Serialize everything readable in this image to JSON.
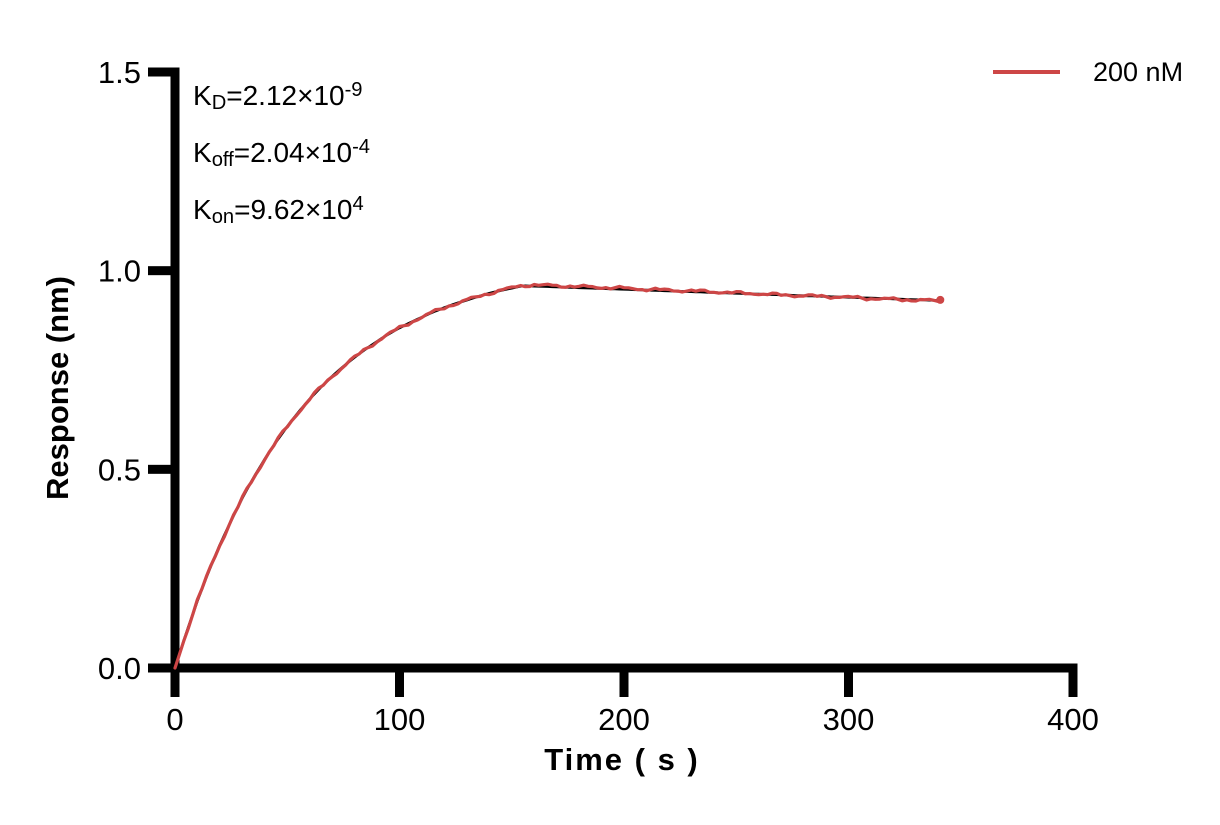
{
  "page": {
    "background_color": "#ffffff",
    "axis_color": "#000000"
  },
  "chart_data": {
    "type": "line",
    "title": "",
    "xlabel": "Time ( s )",
    "ylabel": "Response (nm)",
    "xlim": [
      0,
      400
    ],
    "ylim": [
      0,
      1.5
    ],
    "x_ticks": [
      0,
      100,
      200,
      300,
      400
    ],
    "y_ticks": [
      {
        "value": 0,
        "label": "0.0"
      },
      {
        "value": 0.5,
        "label": "0.5"
      },
      {
        "value": 1.0,
        "label": "1.0"
      },
      {
        "value": 1.5,
        "label": "1.5"
      }
    ],
    "grid": false,
    "legend": {
      "position": "top-right",
      "entries": [
        {
          "label": "200 nM",
          "color": "#cd4646"
        }
      ]
    },
    "annotations": [
      {
        "base": "K",
        "sub": "D",
        "body": "=2.12×10",
        "sup": "-9"
      },
      {
        "base": "K",
        "sub": "off",
        "body": "=2.04×10",
        "sup": "-4"
      },
      {
        "base": "K",
        "sub": "on",
        "body": "=9.62×10",
        "sup": "4"
      }
    ],
    "noise_amplitude": 0.0045,
    "series": [
      {
        "name": "fit",
        "color": "#000000",
        "width": 2.6,
        "points": [
          [
            0,
            0
          ],
          [
            5,
            0.088
          ],
          [
            10,
            0.169
          ],
          [
            15,
            0.243
          ],
          [
            20,
            0.31
          ],
          [
            25,
            0.371
          ],
          [
            30,
            0.428
          ],
          [
            35,
            0.479
          ],
          [
            40,
            0.526
          ],
          [
            45,
            0.569
          ],
          [
            50,
            0.608
          ],
          [
            55,
            0.644
          ],
          [
            60,
            0.677
          ],
          [
            65,
            0.707
          ],
          [
            70,
            0.734
          ],
          [
            75,
            0.759
          ],
          [
            80,
            0.782
          ],
          [
            85,
            0.803
          ],
          [
            90,
            0.822
          ],
          [
            95,
            0.84
          ],
          [
            100,
            0.856
          ],
          [
            105,
            0.87
          ],
          [
            110,
            0.883
          ],
          [
            115,
            0.896
          ],
          [
            120,
            0.907
          ],
          [
            125,
            0.917
          ],
          [
            130,
            0.926
          ],
          [
            135,
            0.935
          ],
          [
            140,
            0.943
          ],
          [
            145,
            0.95
          ],
          [
            150,
            0.956
          ],
          [
            155,
            0.962
          ],
          [
            160,
            0.961
          ],
          [
            165,
            0.96
          ],
          [
            170,
            0.959
          ],
          [
            175,
            0.958
          ],
          [
            180,
            0.957
          ],
          [
            190,
            0.955
          ],
          [
            200,
            0.953
          ],
          [
            210,
            0.951
          ],
          [
            220,
            0.949
          ],
          [
            230,
            0.947
          ],
          [
            240,
            0.945
          ],
          [
            250,
            0.943
          ],
          [
            260,
            0.941
          ],
          [
            270,
            0.939
          ],
          [
            280,
            0.937
          ],
          [
            290,
            0.935
          ],
          [
            300,
            0.933
          ],
          [
            310,
            0.931
          ],
          [
            320,
            0.929
          ],
          [
            330,
            0.927
          ],
          [
            340,
            0.925
          ]
        ]
      },
      {
        "name": "200 nM data",
        "color": "#cd4646",
        "width": 3.2,
        "points": [
          [
            0,
            0
          ],
          [
            5,
            0.088
          ],
          [
            10,
            0.169
          ],
          [
            15,
            0.243
          ],
          [
            20,
            0.31
          ],
          [
            25,
            0.371
          ],
          [
            30,
            0.428
          ],
          [
            35,
            0.479
          ],
          [
            40,
            0.526
          ],
          [
            45,
            0.569
          ],
          [
            50,
            0.608
          ],
          [
            55,
            0.644
          ],
          [
            60,
            0.677
          ],
          [
            65,
            0.707
          ],
          [
            70,
            0.734
          ],
          [
            75,
            0.759
          ],
          [
            80,
            0.782
          ],
          [
            85,
            0.803
          ],
          [
            90,
            0.822
          ],
          [
            95,
            0.84
          ],
          [
            100,
            0.856
          ],
          [
            105,
            0.87
          ],
          [
            110,
            0.883
          ],
          [
            115,
            0.896
          ],
          [
            120,
            0.907
          ],
          [
            125,
            0.917
          ],
          [
            130,
            0.926
          ],
          [
            135,
            0.935
          ],
          [
            140,
            0.943
          ],
          [
            145,
            0.95
          ],
          [
            150,
            0.957
          ],
          [
            155,
            0.963
          ],
          [
            160,
            0.964
          ],
          [
            165,
            0.963
          ],
          [
            170,
            0.962
          ],
          [
            175,
            0.961
          ],
          [
            180,
            0.96
          ],
          [
            190,
            0.958
          ],
          [
            200,
            0.956
          ],
          [
            210,
            0.953
          ],
          [
            220,
            0.951
          ],
          [
            230,
            0.949
          ],
          [
            240,
            0.947
          ],
          [
            250,
            0.944
          ],
          [
            260,
            0.942
          ],
          [
            270,
            0.939
          ],
          [
            280,
            0.937
          ],
          [
            290,
            0.935
          ],
          [
            300,
            0.933
          ],
          [
            310,
            0.93
          ],
          [
            320,
            0.928
          ],
          [
            330,
            0.926
          ],
          [
            340,
            0.924
          ]
        ]
      }
    ]
  }
}
